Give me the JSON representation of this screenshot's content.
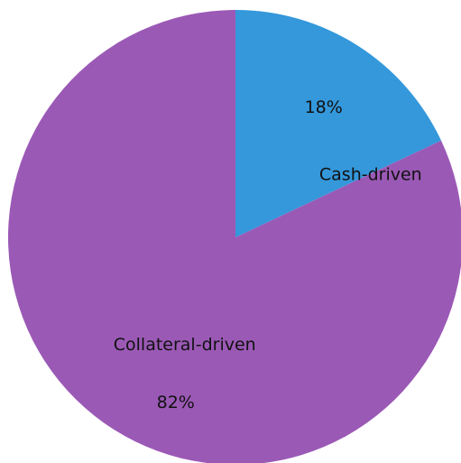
{
  "chart_data": {
    "type": "pie",
    "title": "",
    "start_angle_deg": 90,
    "direction": "clockwise",
    "slices": [
      {
        "label": "Cash-driven",
        "value": 18,
        "pct_label": "18%",
        "color": "#3498db"
      },
      {
        "label": "Collateral-driven",
        "value": 82,
        "pct_label": "82%",
        "color": "#9b59b6"
      }
    ]
  }
}
